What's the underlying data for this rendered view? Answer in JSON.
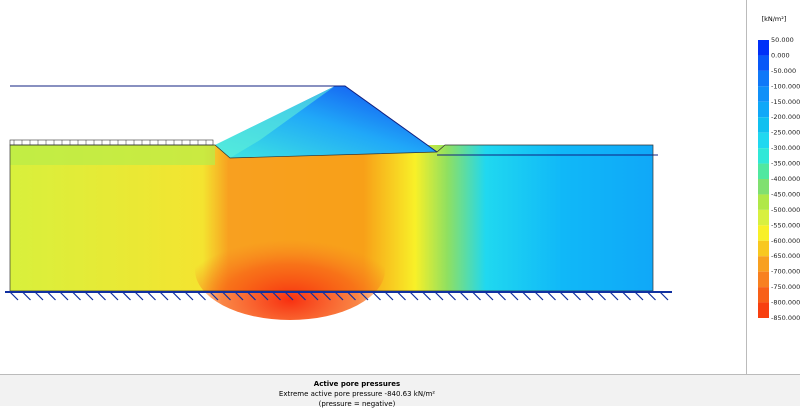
{
  "legend": {
    "title": "[kN/m²]",
    "labels": [
      "50.000",
      "0.000",
      "-50.000",
      "-100.000",
      "-150.000",
      "-200.000",
      "-250.000",
      "-300.000",
      "-350.000",
      "-400.000",
      "-450.000",
      "-500.000",
      "-550.000",
      "-600.000",
      "-650.000",
      "-700.000",
      "-750.000",
      "-800.000",
      "-850.000"
    ]
  },
  "caption": {
    "title": "Active pore pressures",
    "extreme": "Extreme active pore pressure -840.63 kN/m²",
    "note": "(pressure = negative)"
  }
}
